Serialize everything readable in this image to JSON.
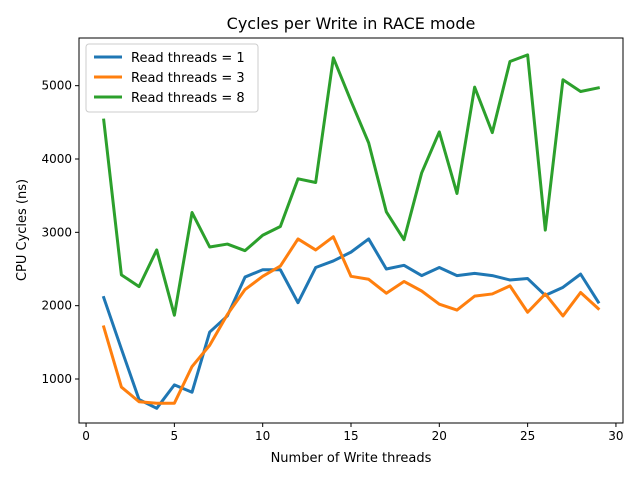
{
  "chart_data": {
    "type": "line",
    "title": "Cycles per Write in RACE mode",
    "xlabel": "Number of Write threads",
    "ylabel": "CPU Cycles (ns)",
    "xlim": [
      -0.4,
      30.4
    ],
    "ylim": [
      400,
      5650
    ],
    "xticks": [
      0,
      5,
      10,
      15,
      20,
      25,
      30
    ],
    "xtick_labels": [
      "0",
      "5",
      "10",
      "15",
      "20",
      "25",
      "30"
    ],
    "yticks": [
      1000,
      2000,
      3000,
      4000,
      5000
    ],
    "ytick_labels": [
      "1000",
      "2000",
      "3000",
      "4000",
      "5000"
    ],
    "grid": false,
    "legend_position": "top-left",
    "x": [
      1,
      2,
      3,
      4,
      5,
      6,
      7,
      8,
      9,
      10,
      11,
      12,
      13,
      14,
      15,
      16,
      17,
      18,
      19,
      20,
      21,
      22,
      23,
      24,
      25,
      26,
      27,
      28,
      29
    ],
    "series": [
      {
        "name": "Read threads = 1",
        "color": "#1f77b4",
        "values": [
          2110,
          1410,
          720,
          600,
          920,
          820,
          1640,
          1860,
          2390,
          2490,
          2490,
          2040,
          2520,
          2610,
          2730,
          2910,
          2500,
          2550,
          2410,
          2520,
          2410,
          2440,
          2410,
          2350,
          2370,
          2140,
          2250,
          2430,
          2050
        ]
      },
      {
        "name": "Read threads = 3",
        "color": "#ff7f0e",
        "values": [
          1710,
          890,
          690,
          670,
          670,
          1170,
          1460,
          1880,
          2220,
          2400,
          2540,
          2910,
          2760,
          2940,
          2400,
          2360,
          2170,
          2330,
          2200,
          2020,
          1940,
          2130,
          2160,
          2270,
          1910,
          2160,
          1860,
          2180,
          1960
        ]
      },
      {
        "name": "Read threads = 8",
        "color": "#2ca02c",
        "values": [
          4530,
          2420,
          2260,
          2760,
          1870,
          3270,
          2800,
          2840,
          2750,
          2960,
          3080,
          3730,
          3680,
          5380,
          4790,
          4220,
          3280,
          2900,
          3810,
          4370,
          3530,
          4980,
          4360,
          5330,
          5420,
          3030,
          5080,
          4920,
          4970
        ]
      }
    ]
  }
}
